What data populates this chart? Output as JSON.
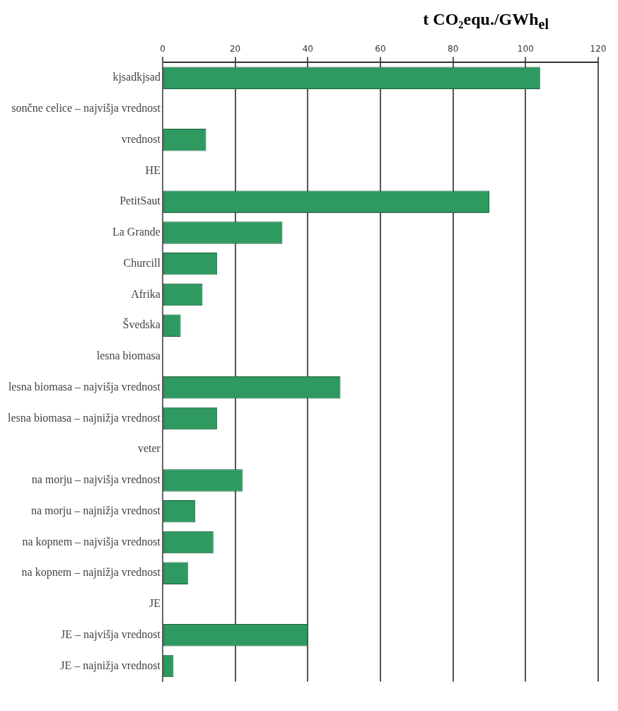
{
  "chart_data": {
    "type": "bar",
    "orientation": "horizontal",
    "title": "t CO₂equ./GWh$_{el}$",
    "categories": [
      "kjsadkjsad",
      "sončne celice – najvišja vrednost",
      "vrednost",
      "HE",
      "PetitSaut",
      "La Grande",
      "Churcill",
      "Afrika",
      "Švedska",
      "lesna biomasa",
      "lesna biomasa – najvišja vrednost",
      "lesna biomasa – najnižja vrednost",
      "veter",
      "na morju – najvišja vrednost",
      "na morju – najnižja vrednost",
      "na kopnem – najvišja vrednost",
      "na kopnem – najnižja vrednost",
      "JE",
      "JE – najvišja vrednost",
      "JE – najnižja vrednost"
    ],
    "values": [
      104,
      null,
      12,
      null,
      90,
      33,
      15,
      11,
      5,
      null,
      49,
      15,
      null,
      22,
      9,
      14,
      7,
      null,
      40,
      3
    ],
    "color": "#2e9960",
    "xlim": [
      0,
      120
    ],
    "xticks": [
      0,
      20,
      40,
      60,
      80,
      100,
      120
    ],
    "grid": "x",
    "legend": false
  }
}
